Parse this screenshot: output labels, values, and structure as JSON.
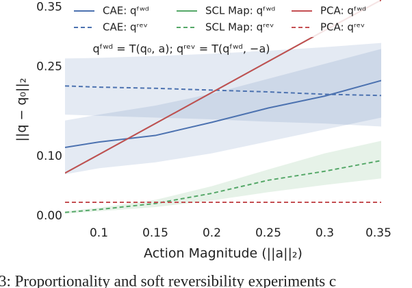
{
  "chart_data": {
    "type": "line",
    "xlabel": "Action Magnitude (||a||₂)",
    "ylabel": "||q − q₀||₂",
    "annotation": "qᶠʷᵈ = T(q₀, a);  qʳᵉᵛ = T(qᶠʷᵈ, −a)",
    "caption": "3: Proportionality and soft reversibility experiments c",
    "x": [
      0.07,
      0.1,
      0.15,
      0.2,
      0.25,
      0.3,
      0.35
    ],
    "xlim": [
      0.07,
      0.35
    ],
    "xticks": [
      0.1,
      0.15,
      0.2,
      0.25,
      0.3,
      0.35
    ],
    "ylim": [
      -0.008,
      0.362
    ],
    "yticks": [
      {
        "value": 0,
        "label": "0.00"
      },
      {
        "value": 0.1,
        "label": "0.10"
      },
      {
        "value": 0.25,
        "label": "0.25"
      },
      {
        "value": 0.35,
        "label": "0.35"
      }
    ],
    "series": [
      {
        "name": "CAE: qᶠʷᵈ",
        "color": "#4c72b0",
        "dash": false,
        "values": [
          0.115,
          0.124,
          0.135,
          0.157,
          0.181,
          0.201,
          0.227
        ],
        "band_upper": [
          0.16,
          0.17,
          0.185,
          0.205,
          0.23,
          0.255,
          0.28
        ],
        "band_lower": [
          0.07,
          0.08,
          0.09,
          0.105,
          0.125,
          0.145,
          0.165
        ]
      },
      {
        "name": "CAE: qʳᵉᵛ",
        "color": "#4c72b0",
        "dash": true,
        "values": [
          0.218,
          0.216,
          0.214,
          0.211,
          0.208,
          0.204,
          0.202
        ],
        "band_upper": [
          0.264,
          0.265,
          0.268,
          0.272,
          0.277,
          0.283,
          0.29
        ],
        "band_lower": [
          0.17,
          0.168,
          0.165,
          0.162,
          0.158,
          0.155,
          0.15
        ]
      },
      {
        "name": "SCL Map: qᶠʷᵈ",
        "color": "#55a868",
        "dash": false,
        "values": [
          0.072,
          0.103,
          0.155,
          0.207,
          0.259,
          0.311,
          0.362
        ]
      },
      {
        "name": "SCL Map: qʳᵉᵛ",
        "color": "#55a868",
        "dash": true,
        "values": [
          0.006,
          0.011,
          0.021,
          0.038,
          0.06,
          0.075,
          0.093
        ],
        "band_upper": [
          0.008,
          0.014,
          0.027,
          0.05,
          0.078,
          0.105,
          0.126
        ],
        "band_lower": [
          0.004,
          0.008,
          0.015,
          0.026,
          0.04,
          0.052,
          0.063
        ]
      },
      {
        "name": "PCA: qᶠʷᵈ",
        "color": "#c44e52",
        "dash": false,
        "values": [
          0.072,
          0.103,
          0.155,
          0.207,
          0.259,
          0.311,
          0.362
        ]
      },
      {
        "name": "PCA: qʳᵉᵛ",
        "color": "#c44e52",
        "dash": true,
        "values": [
          0.023,
          0.023,
          0.023,
          0.023,
          0.023,
          0.023,
          0.023
        ]
      }
    ]
  }
}
